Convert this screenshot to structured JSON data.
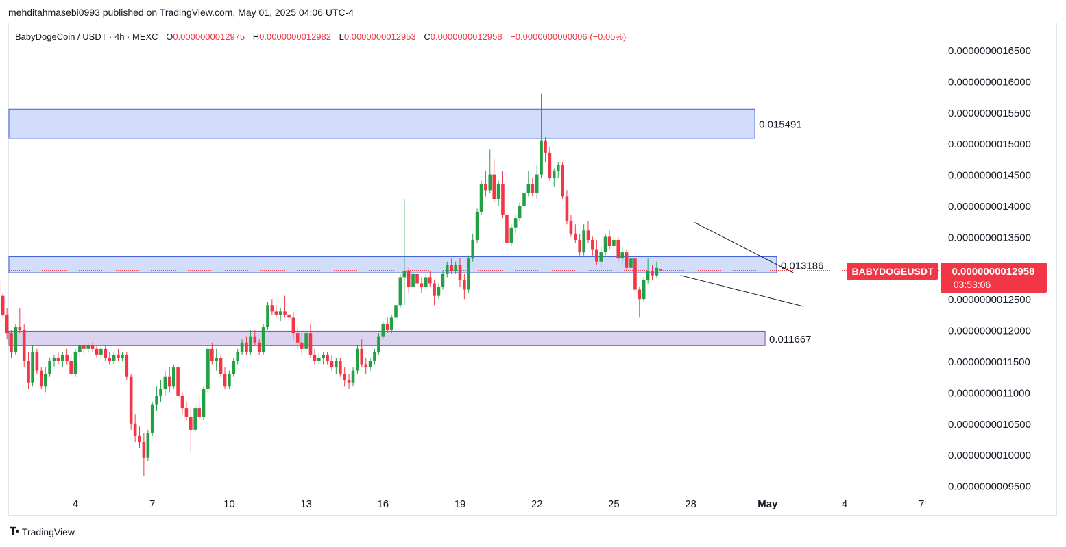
{
  "header": {
    "published": "mehditahmasebi0993 published on TradingView.com, May 01, 2025 04:06 UTC-4"
  },
  "legend": {
    "symbol": "BabyDogeCoin / USDT · 4h · MEXC",
    "open_key": "O",
    "open": "0.0000000012975",
    "high_key": "H",
    "high": "0.0000000012982",
    "low_key": "L",
    "low": "0.0000000012953",
    "close_key": "C",
    "close": "0.0000000012958",
    "change": "−0.0000000000006 (−0.05%)"
  },
  "price_tag": {
    "ticker": "BABYDOGEUSDT",
    "price": "0.0000000012958",
    "countdown": "03:53:06"
  },
  "footer": {
    "brand": "TradingView"
  },
  "colors": {
    "up": "#22a045",
    "down": "#f23645",
    "zone_blue_fill": "#d1ddfb",
    "zone_blue_stroke": "#3d5fd9",
    "zone_purple_fill": "#dcd3f1",
    "zone_purple_stroke": "#6a5a9c"
  },
  "chart_data": {
    "type": "candlestick",
    "timeframe": "4h",
    "y_unit_note": "price in USDT",
    "y_ticks": [
      "0.0000000016500",
      "0.0000000016000",
      "0.0000000015500",
      "0.0000000015000",
      "0.0000000014500",
      "0.0000000014000",
      "0.0000000013500",
      "0.0000000013000",
      "0.0000000012500",
      "0.0000000012000",
      "0.0000000011500",
      "0.0000000011000",
      "0.0000000010500",
      "0.0000000010000",
      "0.0000000009500"
    ],
    "y_tick_values": [
      16.5,
      16.0,
      15.5,
      15.0,
      14.5,
      14.0,
      13.5,
      13.0,
      12.5,
      12.0,
      11.5,
      11.0,
      10.5,
      10.0,
      9.5
    ],
    "y_scale_note": "tick values expressed ×1e-10 USDT",
    "x_ticks": [
      {
        "label": "4",
        "day": 4
      },
      {
        "label": "7",
        "day": 7
      },
      {
        "label": "10",
        "day": 10
      },
      {
        "label": "13",
        "day": 13
      },
      {
        "label": "16",
        "day": 16
      },
      {
        "label": "19",
        "day": 19
      },
      {
        "label": "22",
        "day": 22
      },
      {
        "label": "25",
        "day": 25
      },
      {
        "label": "28",
        "day": 28
      },
      {
        "label": "May",
        "day": 31
      },
      {
        "label": "4",
        "day": 34
      },
      {
        "label": "7",
        "day": 37
      }
    ],
    "day_axis_note": "days counted from April 1 2025 = 1; May 1 = 31",
    "zones": [
      {
        "label": "0.015491",
        "from_day": 1.0,
        "to_day": 30.5,
        "high": 15.55,
        "low": 15.08,
        "color": "blue"
      },
      {
        "label": "0.013186",
        "from_day": 1.0,
        "to_day": 31.35,
        "high": 13.18,
        "low": 12.92,
        "color": "blue"
      },
      {
        "label": "0.011667",
        "from_day": 1.0,
        "to_day": 30.9,
        "high": 11.98,
        "low": 11.75,
        "color": "purple"
      }
    ],
    "trendlines": [
      {
        "from": [
          28.15,
          13.73
        ],
        "to": [
          32.0,
          12.92
        ]
      },
      {
        "from": [
          27.6,
          12.88
        ],
        "to": [
          32.4,
          12.38
        ]
      }
    ],
    "last_price": 12.958,
    "candles": [
      [
        1.0,
        12.8,
        12.95,
        12.55,
        12.55
      ],
      [
        1.17,
        12.55,
        12.6,
        12.2,
        12.25
      ],
      [
        1.33,
        12.25,
        12.35,
        11.85,
        11.95
      ],
      [
        1.5,
        11.95,
        12.0,
        11.55,
        11.65
      ],
      [
        1.67,
        11.65,
        12.1,
        11.6,
        12.05
      ],
      [
        1.83,
        12.05,
        12.35,
        11.95,
        12.0
      ],
      [
        2.0,
        12.0,
        12.1,
        11.4,
        11.5
      ],
      [
        2.17,
        11.5,
        11.65,
        11.05,
        11.15
      ],
      [
        2.33,
        11.15,
        11.75,
        11.1,
        11.65
      ],
      [
        2.5,
        11.65,
        11.7,
        11.3,
        11.35
      ],
      [
        2.67,
        11.35,
        11.4,
        11.05,
        11.1
      ],
      [
        2.83,
        11.1,
        11.4,
        11.0,
        11.3
      ],
      [
        3.0,
        11.3,
        11.55,
        11.25,
        11.5
      ],
      [
        3.17,
        11.5,
        11.6,
        11.4,
        11.55
      ],
      [
        3.33,
        11.55,
        11.65,
        11.45,
        11.5
      ],
      [
        3.5,
        11.5,
        11.65,
        11.4,
        11.6
      ],
      [
        3.67,
        11.6,
        11.7,
        11.45,
        11.5
      ],
      [
        3.83,
        11.5,
        11.6,
        11.25,
        11.3
      ],
      [
        4.0,
        11.3,
        11.7,
        11.25,
        11.65
      ],
      [
        4.17,
        11.65,
        11.8,
        11.55,
        11.75
      ],
      [
        4.33,
        11.75,
        11.8,
        11.6,
        11.7
      ],
      [
        4.5,
        11.7,
        11.8,
        11.65,
        11.75
      ],
      [
        4.67,
        11.75,
        11.8,
        11.65,
        11.7
      ],
      [
        4.83,
        11.7,
        11.75,
        11.55,
        11.6
      ],
      [
        5.0,
        11.6,
        11.75,
        11.55,
        11.7
      ],
      [
        5.17,
        11.7,
        11.75,
        11.5,
        11.55
      ],
      [
        5.33,
        11.55,
        11.65,
        11.45,
        11.5
      ],
      [
        5.5,
        11.5,
        11.65,
        11.45,
        11.6
      ],
      [
        5.67,
        11.6,
        11.7,
        11.5,
        11.55
      ],
      [
        5.83,
        11.55,
        11.65,
        11.5,
        11.6
      ],
      [
        6.0,
        11.6,
        11.65,
        11.2,
        11.25
      ],
      [
        6.17,
        11.25,
        11.3,
        10.4,
        10.5
      ],
      [
        6.33,
        10.5,
        10.65,
        10.2,
        10.3
      ],
      [
        6.5,
        10.3,
        10.45,
        10.1,
        10.2
      ],
      [
        6.67,
        10.2,
        10.35,
        9.65,
        9.95
      ],
      [
        6.83,
        9.95,
        10.4,
        9.9,
        10.35
      ],
      [
        7.0,
        10.35,
        10.85,
        10.3,
        10.8
      ],
      [
        7.17,
        10.8,
        11.1,
        10.7,
        10.95
      ],
      [
        7.33,
        10.95,
        11.2,
        10.85,
        11.05
      ],
      [
        7.5,
        11.05,
        11.35,
        10.95,
        11.25
      ],
      [
        7.67,
        11.25,
        11.4,
        11.0,
        11.1
      ],
      [
        7.83,
        11.1,
        11.45,
        11.05,
        11.4
      ],
      [
        8.0,
        11.4,
        11.45,
        10.9,
        10.95
      ],
      [
        8.17,
        10.95,
        11.0,
        10.65,
        10.75
      ],
      [
        8.33,
        10.75,
        10.85,
        10.55,
        10.6
      ],
      [
        8.5,
        10.6,
        10.75,
        10.05,
        10.4
      ],
      [
        8.67,
        10.4,
        10.8,
        10.35,
        10.75
      ],
      [
        8.83,
        10.75,
        10.9,
        10.55,
        10.6
      ],
      [
        9.0,
        10.6,
        11.1,
        10.55,
        11.05
      ],
      [
        9.17,
        11.05,
        11.75,
        11.0,
        11.7
      ],
      [
        9.33,
        11.7,
        11.8,
        11.45,
        11.5
      ],
      [
        9.5,
        11.5,
        11.7,
        11.35,
        11.55
      ],
      [
        9.67,
        11.55,
        11.6,
        11.25,
        11.3
      ],
      [
        9.83,
        11.3,
        11.4,
        11.05,
        11.1
      ],
      [
        10.0,
        11.1,
        11.35,
        11.05,
        11.3
      ],
      [
        10.17,
        11.3,
        11.55,
        11.25,
        11.5
      ],
      [
        10.33,
        11.5,
        11.7,
        11.45,
        11.65
      ],
      [
        10.5,
        11.65,
        11.85,
        11.6,
        11.8
      ],
      [
        10.67,
        11.8,
        11.9,
        11.6,
        11.65
      ],
      [
        10.83,
        11.65,
        12.0,
        11.6,
        11.9
      ],
      [
        11.0,
        11.9,
        12.0,
        11.75,
        11.8
      ],
      [
        11.17,
        11.8,
        11.85,
        11.6,
        11.65
      ],
      [
        11.33,
        11.65,
        12.1,
        11.6,
        12.05
      ],
      [
        11.5,
        12.05,
        12.45,
        12.0,
        12.4
      ],
      [
        11.67,
        12.4,
        12.5,
        12.25,
        12.3
      ],
      [
        11.83,
        12.3,
        12.4,
        12.2,
        12.25
      ],
      [
        12.0,
        12.25,
        12.35,
        12.15,
        12.3
      ],
      [
        12.17,
        12.3,
        12.55,
        12.2,
        12.25
      ],
      [
        12.33,
        12.25,
        12.4,
        12.15,
        12.2
      ],
      [
        12.5,
        12.2,
        12.3,
        11.85,
        11.95
      ],
      [
        12.67,
        11.95,
        12.05,
        11.7,
        11.8
      ],
      [
        12.83,
        11.8,
        11.95,
        11.6,
        11.7
      ],
      [
        13.0,
        11.7,
        12.0,
        11.65,
        11.95
      ],
      [
        13.17,
        11.95,
        12.1,
        11.55,
        11.6
      ],
      [
        13.33,
        11.6,
        11.7,
        11.45,
        11.5
      ],
      [
        13.5,
        11.5,
        11.65,
        11.45,
        11.55
      ],
      [
        13.67,
        11.55,
        11.65,
        11.45,
        11.6
      ],
      [
        13.83,
        11.6,
        11.65,
        11.45,
        11.5
      ],
      [
        14.0,
        11.5,
        11.6,
        11.35,
        11.4
      ],
      [
        14.17,
        11.4,
        11.55,
        11.3,
        11.5
      ],
      [
        14.33,
        11.5,
        11.55,
        11.25,
        11.3
      ],
      [
        14.5,
        11.3,
        11.4,
        11.1,
        11.2
      ],
      [
        14.67,
        11.2,
        11.3,
        11.05,
        11.15
      ],
      [
        14.83,
        11.15,
        11.4,
        11.1,
        11.35
      ],
      [
        15.0,
        11.35,
        11.75,
        11.3,
        11.7
      ],
      [
        15.17,
        11.7,
        11.85,
        11.4,
        11.45
      ],
      [
        15.33,
        11.45,
        11.55,
        11.3,
        11.4
      ],
      [
        15.5,
        11.4,
        11.55,
        11.35,
        11.5
      ],
      [
        15.67,
        11.5,
        11.7,
        11.45,
        11.65
      ],
      [
        15.83,
        11.65,
        11.95,
        11.6,
        11.9
      ],
      [
        16.0,
        11.9,
        12.15,
        11.85,
        12.1
      ],
      [
        16.17,
        12.1,
        12.2,
        11.95,
        12.0
      ],
      [
        16.33,
        12.0,
        12.25,
        11.95,
        12.2
      ],
      [
        16.5,
        12.2,
        12.45,
        12.15,
        12.4
      ],
      [
        16.67,
        12.4,
        12.9,
        12.35,
        12.85
      ],
      [
        16.83,
        12.85,
        14.1,
        12.4,
        12.95
      ],
      [
        17.0,
        12.95,
        13.0,
        12.6,
        12.7
      ],
      [
        17.17,
        12.7,
        12.95,
        12.65,
        12.9
      ],
      [
        17.33,
        12.9,
        12.95,
        12.7,
        12.75
      ],
      [
        17.5,
        12.75,
        12.85,
        12.6,
        12.7
      ],
      [
        17.67,
        12.7,
        12.9,
        12.65,
        12.85
      ],
      [
        17.83,
        12.85,
        12.95,
        12.7,
        12.75
      ],
      [
        18.0,
        12.75,
        12.8,
        12.4,
        12.55
      ],
      [
        18.17,
        12.55,
        12.75,
        12.5,
        12.7
      ],
      [
        18.33,
        12.7,
        12.95,
        12.65,
        12.9
      ],
      [
        18.5,
        12.9,
        13.1,
        12.85,
        13.05
      ],
      [
        18.67,
        13.05,
        13.15,
        12.9,
        12.95
      ],
      [
        18.83,
        12.95,
        13.1,
        12.9,
        13.05
      ],
      [
        19.0,
        13.05,
        13.15,
        12.7,
        12.8
      ],
      [
        19.17,
        12.8,
        12.9,
        12.5,
        12.65
      ],
      [
        19.33,
        12.65,
        13.2,
        12.6,
        13.15
      ],
      [
        19.5,
        13.15,
        13.55,
        13.1,
        13.45
      ],
      [
        19.67,
        13.45,
        13.95,
        13.4,
        13.9
      ],
      [
        19.83,
        13.9,
        14.4,
        13.85,
        14.35
      ],
      [
        20.0,
        14.35,
        14.55,
        14.15,
        14.25
      ],
      [
        20.17,
        14.25,
        14.9,
        14.2,
        14.5
      ],
      [
        20.33,
        14.5,
        14.75,
        14.05,
        14.1
      ],
      [
        20.5,
        14.1,
        14.4,
        14.0,
        14.35
      ],
      [
        20.67,
        14.35,
        14.55,
        13.8,
        13.85
      ],
      [
        20.83,
        13.85,
        13.95,
        13.35,
        13.4
      ],
      [
        21.0,
        13.4,
        13.7,
        13.35,
        13.65
      ],
      [
        21.17,
        13.65,
        13.85,
        13.55,
        13.8
      ],
      [
        21.33,
        13.8,
        14.05,
        13.75,
        14.0
      ],
      [
        21.5,
        14.0,
        14.25,
        13.9,
        14.2
      ],
      [
        21.67,
        14.2,
        14.55,
        14.15,
        14.35
      ],
      [
        21.83,
        14.35,
        14.45,
        14.15,
        14.2
      ],
      [
        22.0,
        14.2,
        14.65,
        14.1,
        14.5
      ],
      [
        22.17,
        14.5,
        15.8,
        14.45,
        15.05
      ],
      [
        22.33,
        15.05,
        15.1,
        14.7,
        14.85
      ],
      [
        22.5,
        14.85,
        14.95,
        14.4,
        14.45
      ],
      [
        22.67,
        14.45,
        14.6,
        14.3,
        14.55
      ],
      [
        22.83,
        14.55,
        14.7,
        14.45,
        14.65
      ],
      [
        23.0,
        14.65,
        14.7,
        14.1,
        14.15
      ],
      [
        23.17,
        14.15,
        14.25,
        13.7,
        13.75
      ],
      [
        23.33,
        13.75,
        13.85,
        13.5,
        13.55
      ],
      [
        23.5,
        13.55,
        13.7,
        13.4,
        13.45
      ],
      [
        23.67,
        13.45,
        13.55,
        13.2,
        13.25
      ],
      [
        23.83,
        13.25,
        13.7,
        13.2,
        13.6
      ],
      [
        24.0,
        13.6,
        13.75,
        13.4,
        13.45
      ],
      [
        24.17,
        13.45,
        13.5,
        13.2,
        13.3
      ],
      [
        24.33,
        13.3,
        13.45,
        13.05,
        13.1
      ],
      [
        24.5,
        13.1,
        13.35,
        13.0,
        13.25
      ],
      [
        24.67,
        13.25,
        13.55,
        13.2,
        13.5
      ],
      [
        24.83,
        13.5,
        13.6,
        13.3,
        13.35
      ],
      [
        25.0,
        13.35,
        13.55,
        13.25,
        13.45
      ],
      [
        25.17,
        13.45,
        13.5,
        13.1,
        13.15
      ],
      [
        25.33,
        13.15,
        13.35,
        13.05,
        13.25
      ],
      [
        25.5,
        13.25,
        13.3,
        12.95,
        13.0
      ],
      [
        25.67,
        13.0,
        13.2,
        12.75,
        13.15
      ],
      [
        25.83,
        13.15,
        13.2,
        12.55,
        12.65
      ],
      [
        26.0,
        12.65,
        12.7,
        12.2,
        12.5
      ],
      [
        26.17,
        12.5,
        12.85,
        12.45,
        12.8
      ],
      [
        26.33,
        12.8,
        13.15,
        12.75,
        12.95
      ],
      [
        26.5,
        12.95,
        13.05,
        12.8,
        12.88
      ],
      [
        26.67,
        12.88,
        13.1,
        12.85,
        13.0
      ],
      [
        26.83,
        12.975,
        12.982,
        12.953,
        12.958
      ]
    ]
  }
}
